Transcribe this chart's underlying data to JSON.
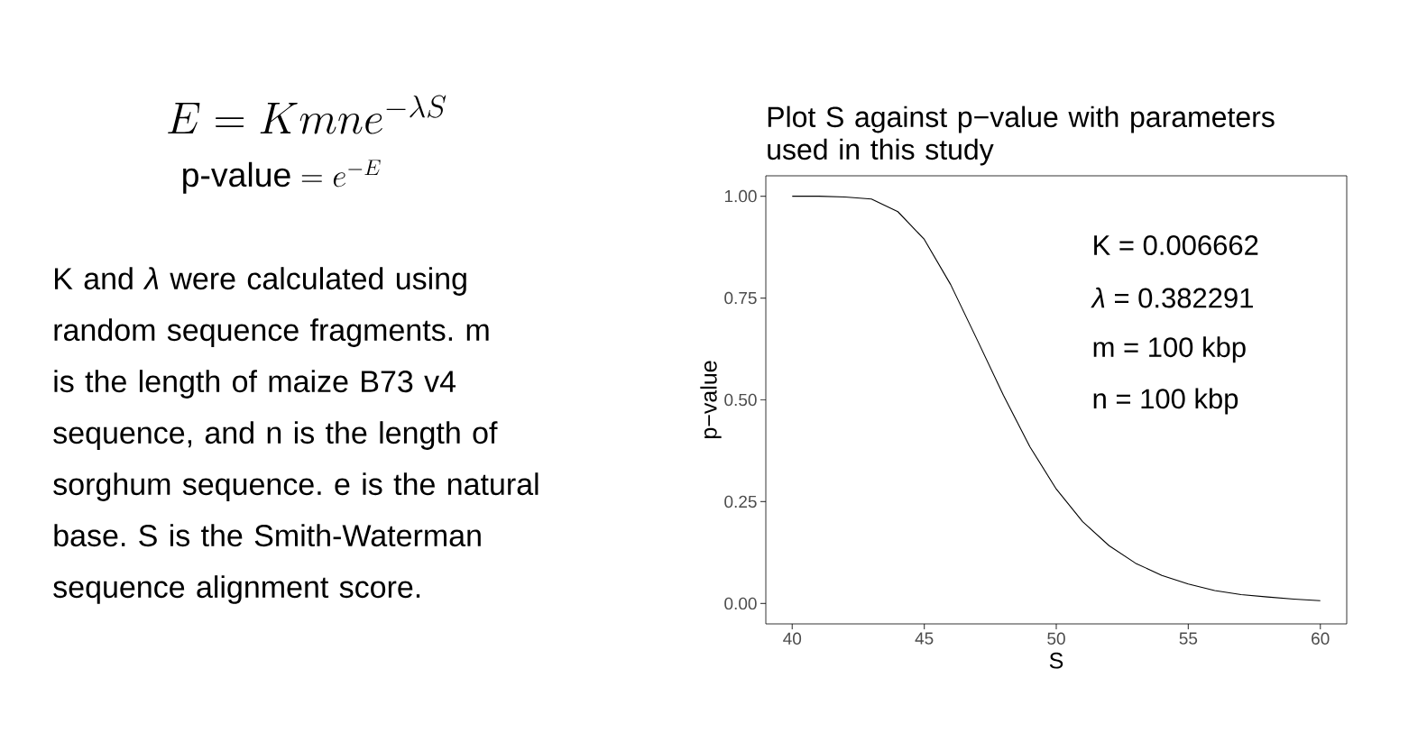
{
  "chart_data": {
    "type": "line",
    "title": "Plot S against p−value with parameters used in this study",
    "xlabel": "S",
    "ylabel": "p−value",
    "x": [
      40,
      41,
      42,
      43,
      44,
      45,
      46,
      47,
      48,
      49,
      50,
      51,
      52,
      53,
      54,
      55,
      56,
      57,
      58,
      59,
      60
    ],
    "series": [
      {
        "color": "#000000",
        "values": [
          1.0,
          1.0,
          0.998,
          0.993,
          0.962,
          0.894,
          0.783,
          0.648,
          0.511,
          0.385,
          0.281,
          0.201,
          0.142,
          0.099,
          0.069,
          0.048,
          0.032,
          0.022,
          0.016,
          0.011,
          0.007
        ]
      }
    ],
    "xlim": [
      39,
      61
    ],
    "ylim": [
      -0.05,
      1.05
    ],
    "xticks": [
      40,
      45,
      50,
      55,
      60
    ],
    "yticks": [
      {
        "value": 0,
        "label": "0.00"
      },
      {
        "value": 0.25,
        "label": "0.25"
      },
      {
        "value": 0.5,
        "label": "0.50"
      },
      {
        "value": 0.75,
        "label": "0.75"
      },
      {
        "value": 1,
        "label": "1.00"
      }
    ],
    "annotations": [
      "E = Kmne^{-\\lambda S}",
      "\\mbox{p-value} = e^{-E}",
      "K and *λ* were calculated using random sequence fragments. m is the length of maize B73 v4 sequence, and n is the length of sorghum sequence. e is the natural base. S is the Smith-Waterman sequence alignment score.",
      "K = 0.006662",
      "*λ* = 0.382291",
      "m = 100 kbp",
      "n = 100 kbp"
    ]
  }
}
